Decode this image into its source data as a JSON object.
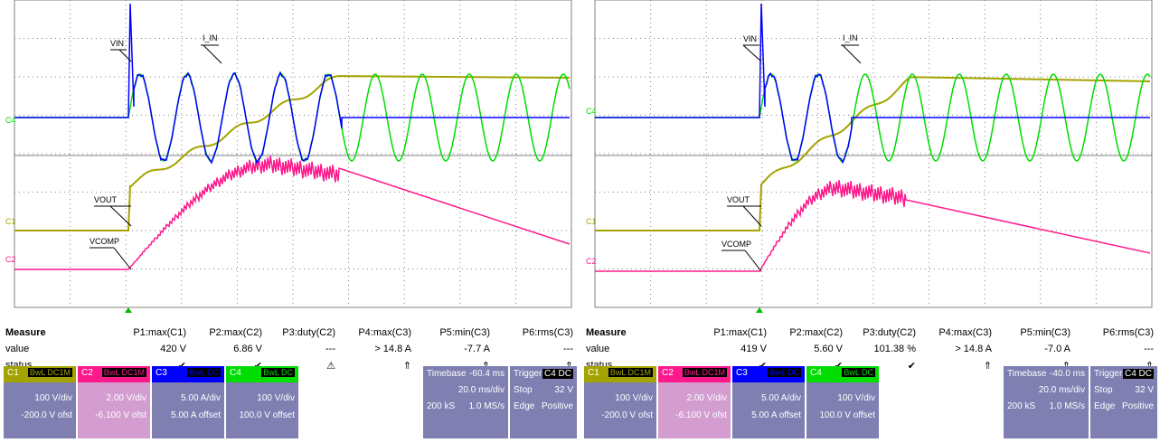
{
  "colors": {
    "c1": "#a3a300",
    "c2": "#ff1a8c",
    "c3": "#0000ff",
    "c4": "#00dd00",
    "grid": "#808080",
    "panel": "#7f7fb2"
  },
  "scopes": [
    {
      "trace_labels": {
        "vin": "VIN",
        "iin": "I_IN",
        "vout": "VOUT",
        "vcomp": "VCOMP"
      },
      "axis_labels": {
        "c4": "C4",
        "c1": "C1",
        "c2": "C2"
      },
      "measure": {
        "title": "Measure",
        "headers": [
          "P1:max(C1)",
          "P2:max(C2)",
          "P3:duty(C2)",
          "P4:max(C3)",
          "P5:min(C3)",
          "P6:rms(C3)"
        ],
        "value_label": "value",
        "values": [
          "420 V",
          "6.86 V",
          "---",
          "> 14.8 A",
          "-7.7 A",
          "---"
        ],
        "status_label": "status",
        "status": [
          "✔",
          "✔",
          "⚠",
          "⇑",
          "⇑",
          "⇑"
        ]
      },
      "channels": [
        {
          "name": "C1",
          "tag": "BwL DC1M",
          "line1": "100 V/div",
          "line2": "-200.0 V ofst"
        },
        {
          "name": "C2",
          "tag": "BwL DC1M",
          "line1": "2.00 V/div",
          "line2": "-6.100 V ofst"
        },
        {
          "name": "C3",
          "tag": "BwL DC",
          "line1": "5.00 A/div",
          "line2": "5.00 A offset"
        },
        {
          "name": "C4",
          "tag": "BwL DC",
          "line1": "100 V/div",
          "line2": "100.0 V offset"
        }
      ],
      "timebase": {
        "label": "Timebase",
        "delay": "-60.4 ms",
        "rate": "20.0 ms/div",
        "samples": "200 kS",
        "srate": "1.0 MS/s"
      },
      "trigger": {
        "label": "Trigger",
        "tag": "C4 DC",
        "mode": "Stop",
        "level": "32 V",
        "type": "Edge",
        "slope": "Positive"
      }
    },
    {
      "trace_labels": {
        "vin": "VIN",
        "iin": "I_IN",
        "vout": "VOUT",
        "vcomp": "VCOMP"
      },
      "axis_labels": {
        "c4": "C4",
        "c1": "C1",
        "c2": "C2"
      },
      "measure": {
        "title": "Measure",
        "headers": [
          "P1:max(C1)",
          "P2:max(C2)",
          "P3:duty(C2)",
          "P4:max(C3)",
          "P5:min(C3)",
          "P6:rms(C3)"
        ],
        "value_label": "value",
        "values": [
          "419 V",
          "5.60 V",
          "101.38 %",
          "> 14.8 A",
          "-7.0 A",
          "---"
        ],
        "status_label": "status",
        "status": [
          "✔",
          "✔",
          "✔",
          "⇑",
          "⇑",
          "⇑"
        ]
      },
      "channels": [
        {
          "name": "C1",
          "tag": "BwL DC1M",
          "line1": "100 V/div",
          "line2": "-200.0 V ofst"
        },
        {
          "name": "C2",
          "tag": "BwL DC1M",
          "line1": "2.00 V/div",
          "line2": "-6.100 V ofst"
        },
        {
          "name": "C3",
          "tag": "BwL DC",
          "line1": "5.00 A/div",
          "line2": "5.00 A offset"
        },
        {
          "name": "C4",
          "tag": "BwL DC",
          "line1": "100 V/div",
          "line2": "100.0 V offset"
        }
      ],
      "timebase": {
        "label": "Timebase",
        "delay": "-40.0 ms",
        "rate": "20.0 ms/div",
        "samples": "200 kS",
        "srate": "1.0 MS/s"
      },
      "trigger": {
        "label": "Trigger",
        "tag": "C4 DC",
        "mode": "Stop",
        "level": "32 V",
        "type": "Edge",
        "slope": "Positive"
      }
    }
  ]
}
